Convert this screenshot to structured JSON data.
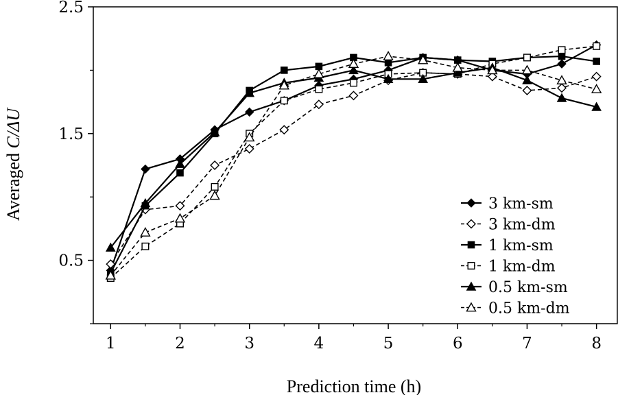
{
  "chart_data": {
    "type": "line",
    "title": "",
    "xlabel": "Prediction time (h)",
    "ylabel_prefix": "Averaged ",
    "ylabel_var": "C/ΔU",
    "xlim": [
      0.75,
      8.3
    ],
    "ylim": [
      0,
      2.5
    ],
    "x_ticks": [
      1,
      2,
      3,
      4,
      5,
      6,
      7,
      8
    ],
    "x_tick_labels": [
      "1",
      "2",
      "3",
      "4",
      "5",
      "6",
      "7",
      "8"
    ],
    "x_minor_ticks": [
      1.5,
      2.5,
      3.5,
      4.5,
      5.5,
      6.5,
      7.5
    ],
    "y_ticks": [
      0.5,
      1.5,
      2.5
    ],
    "y_tick_labels": [
      "0.5",
      "1.5",
      "2.5"
    ],
    "y_minor_ticks": [
      0,
      1,
      2
    ],
    "grid": false,
    "legend_position": "bottom-right",
    "x": [
      1,
      1.5,
      2,
      2.5,
      3,
      3.5,
      4,
      4.5,
      5,
      5.5,
      6,
      6.5,
      7,
      7.5,
      8
    ],
    "series": [
      {
        "name": "3 km-sm",
        "style": "solid",
        "marker": "diamond",
        "filled": true,
        "values": [
          0.42,
          1.22,
          1.3,
          1.53,
          1.67,
          1.76,
          1.88,
          1.93,
          2.0,
          2.1,
          2.08,
          2.0,
          1.97,
          2.05,
          2.2
        ]
      },
      {
        "name": "3 km-dm",
        "style": "dashed",
        "marker": "diamond",
        "filled": false,
        "values": [
          0.47,
          0.9,
          0.93,
          1.25,
          1.38,
          1.53,
          1.73,
          1.8,
          1.92,
          1.98,
          1.97,
          1.95,
          1.84,
          1.86,
          1.95
        ]
      },
      {
        "name": "1 km-sm",
        "style": "solid",
        "marker": "square",
        "filled": true,
        "values": [
          0.4,
          0.93,
          1.19,
          1.5,
          1.84,
          2.0,
          2.03,
          2.1,
          2.06,
          2.1,
          2.08,
          2.07,
          2.1,
          2.11,
          2.07
        ]
      },
      {
        "name": "1 km-dm",
        "style": "dashed",
        "marker": "square",
        "filled": false,
        "values": [
          0.36,
          0.61,
          0.79,
          1.08,
          1.5,
          1.76,
          1.85,
          1.9,
          1.97,
          1.98,
          1.97,
          2.05,
          2.1,
          2.16,
          2.19
        ]
      },
      {
        "name": "0.5 km-sm",
        "style": "solid",
        "marker": "triangle",
        "filled": true,
        "values": [
          0.6,
          0.95,
          1.26,
          1.51,
          1.82,
          1.9,
          1.94,
          2.0,
          1.93,
          1.93,
          1.98,
          2.02,
          1.92,
          1.78,
          1.71
        ]
      },
      {
        "name": "0.5 km-dm",
        "style": "dashed",
        "marker": "triangle",
        "filled": false,
        "values": [
          0.38,
          0.72,
          0.83,
          1.01,
          1.47,
          1.88,
          1.97,
          2.05,
          2.11,
          2.08,
          2.02,
          2.0,
          2.0,
          1.92,
          1.85
        ]
      }
    ]
  }
}
